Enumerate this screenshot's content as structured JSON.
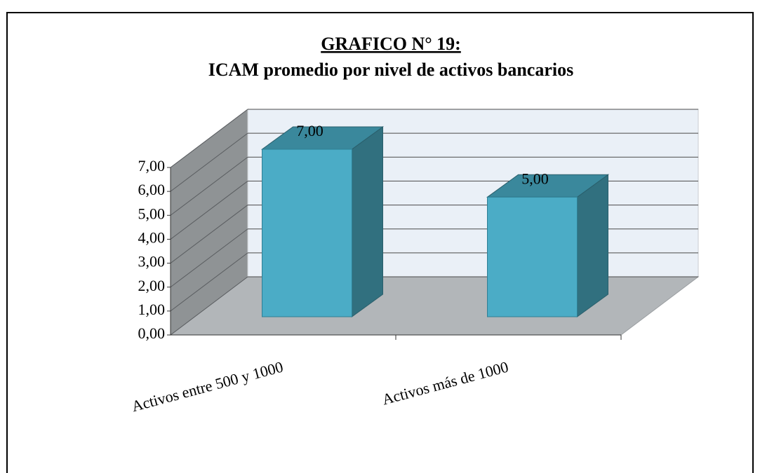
{
  "chart_data": {
    "type": "bar3d",
    "title": "GRAFICO N° 19:",
    "subtitle": "ICAM promedio por nivel de activos bancarios",
    "categories": [
      "Activos entre 500 y 1000",
      "Activos más de 1000"
    ],
    "values": [
      7,
      5
    ],
    "value_labels": [
      "7,00",
      "5,00"
    ],
    "color": "#4bacc6",
    "ylim": [
      0,
      7
    ],
    "yticks": [
      {
        "value": 0,
        "label": "0,00"
      },
      {
        "value": 1,
        "label": "1,00"
      },
      {
        "value": 2,
        "label": "2,00"
      },
      {
        "value": 3,
        "label": "3,00"
      },
      {
        "value": 4,
        "label": "4,00"
      },
      {
        "value": 5,
        "label": "5,00"
      },
      {
        "value": 6,
        "label": "6,00"
      },
      {
        "value": 7,
        "label": "7,00"
      }
    ],
    "grid": true
  }
}
